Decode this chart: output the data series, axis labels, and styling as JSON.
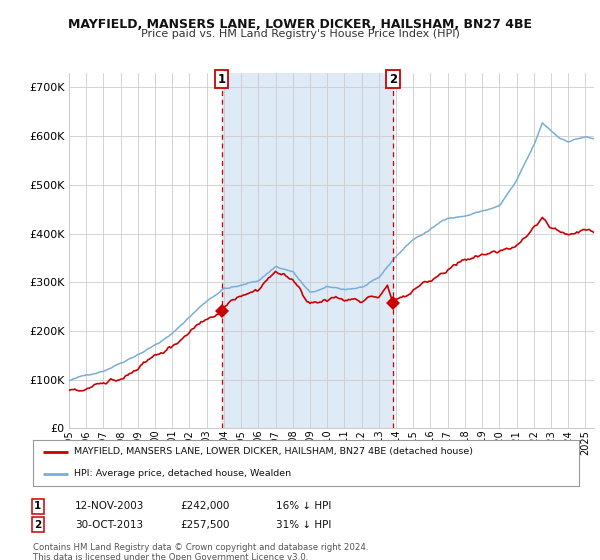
{
  "title": "MAYFIELD, MANSERS LANE, LOWER DICKER, HAILSHAM, BN27 4BE",
  "subtitle": "Price paid vs. HM Land Registry's House Price Index (HPI)",
  "legend_line1": "MAYFIELD, MANSERS LANE, LOWER DICKER, HAILSHAM, BN27 4BE (detached house)",
  "legend_line2": "HPI: Average price, detached house, Wealden",
  "footer1": "Contains HM Land Registry data © Crown copyright and database right 2024.",
  "footer2": "This data is licensed under the Open Government Licence v3.0.",
  "annotation1_label": "1",
  "annotation1_date": "12-NOV-2003",
  "annotation1_price": "£242,000",
  "annotation1_hpi": "16% ↓ HPI",
  "annotation2_label": "2",
  "annotation2_date": "30-OCT-2013",
  "annotation2_price": "£257,500",
  "annotation2_hpi": "31% ↓ HPI",
  "sale1_year": 2003.87,
  "sale1_value": 242000,
  "sale2_year": 2013.83,
  "sale2_value": 257500,
  "hpi_color": "#7aaed4",
  "price_color": "#cc0000",
  "marker_color": "#cc0000",
  "vline_color": "#cc0000",
  "shade_color": "#deeaf5",
  "background_color": "#ffffff",
  "grid_color": "#cccccc",
  "yticks": [
    0,
    100000,
    200000,
    300000,
    400000,
    500000,
    600000,
    700000
  ],
  "ylim": [
    0,
    730000
  ],
  "xlim_start": 1995.0,
  "xlim_end": 2025.5
}
